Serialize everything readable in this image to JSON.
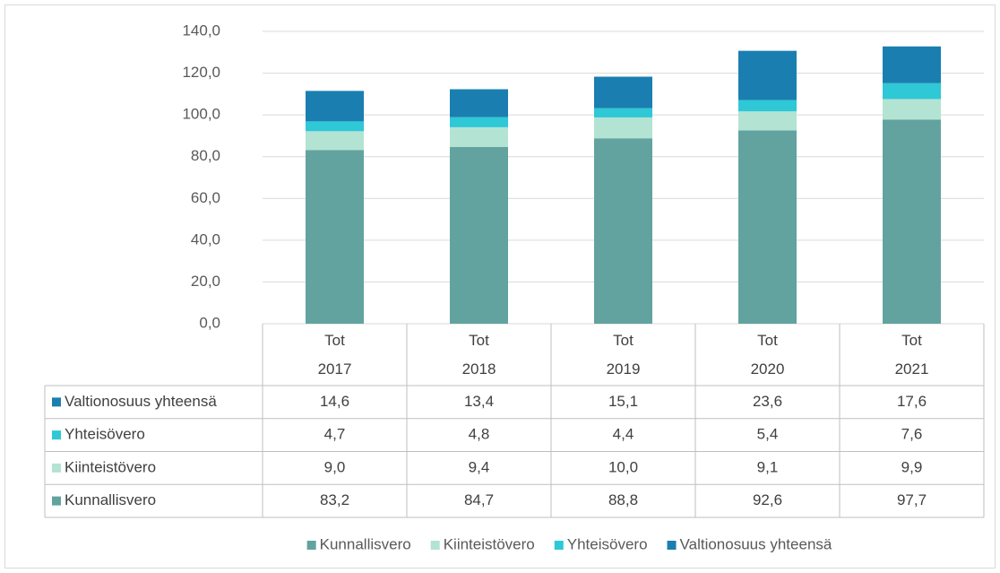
{
  "chart_data": {
    "type": "bar",
    "stacked": true,
    "categories": [
      "Tot 2017",
      "Tot 2018",
      "Tot 2019",
      "Tot 2020",
      "Tot 2021"
    ],
    "series": [
      {
        "name": "Kunnallisvero",
        "color": "#62a39f",
        "values": [
          83.2,
          84.7,
          88.8,
          92.6,
          97.7
        ],
        "value_labels": [
          "83,2",
          "84,7",
          "88,8",
          "92,6",
          "97,7"
        ]
      },
      {
        "name": "Kiinteistövero",
        "color": "#b3e3d3",
        "values": [
          9.0,
          9.4,
          10.0,
          9.1,
          9.9
        ],
        "value_labels": [
          "9,0",
          "9,4",
          "10,0",
          "9,1",
          "9,9"
        ]
      },
      {
        "name": "Yhteisövero",
        "color": "#2ec8d6",
        "values": [
          4.7,
          4.8,
          4.4,
          5.4,
          7.6
        ],
        "value_labels": [
          "4,7",
          "4,8",
          "4,4",
          "5,4",
          "7,6"
        ]
      },
      {
        "name": "Valtionosuus yhteensä",
        "color": "#1a7fb0",
        "values": [
          14.6,
          13.4,
          15.1,
          23.6,
          17.6
        ],
        "value_labels": [
          "14,6",
          "13,4",
          "15,1",
          "23,6",
          "17,6"
        ]
      }
    ],
    "ylim": [
      0,
      140
    ],
    "yticks": [
      {
        "value": 0,
        "label": "0,0"
      },
      {
        "value": 20,
        "label": "20,0"
      },
      {
        "value": 40,
        "label": "40,0"
      },
      {
        "value": 60,
        "label": "60,0"
      },
      {
        "value": 80,
        "label": "80,0"
      },
      {
        "value": 100,
        "label": "100,0"
      },
      {
        "value": 120,
        "label": "120,0"
      },
      {
        "value": 140,
        "label": "140,0"
      }
    ],
    "grid": true,
    "legend": "bottom"
  }
}
